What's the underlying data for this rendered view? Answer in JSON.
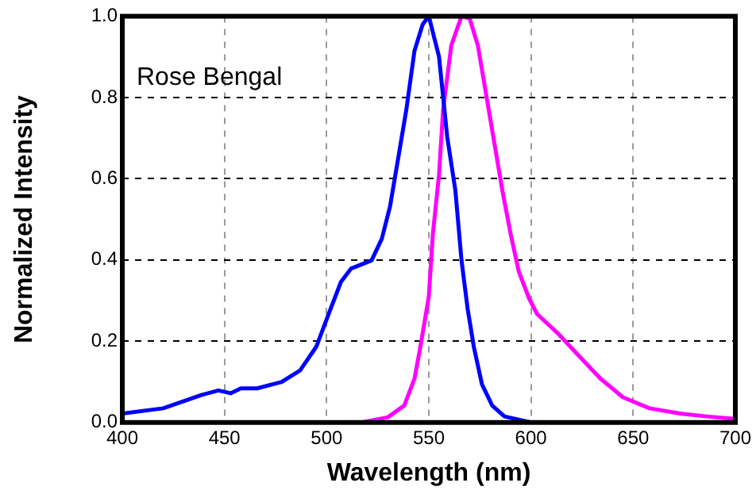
{
  "chart_data": {
    "type": "line",
    "xlabel": "Wavelength (nm)",
    "ylabel": "Normalized Intensity",
    "annotations": [
      "Rose Bengal"
    ],
    "xlim": [
      400,
      700
    ],
    "xticks": [
      400,
      450,
      500,
      550,
      600,
      650,
      700
    ],
    "ylim": [
      0,
      1
    ],
    "yticks": [
      {
        "value": 0,
        "label": "0.0"
      },
      {
        "value": 0.2,
        "label": "0.2"
      },
      {
        "value": 0.4,
        "label": "0.4"
      },
      {
        "value": 0.6,
        "label": "0.6"
      },
      {
        "value": 0.8,
        "label": "0.8"
      },
      {
        "value": 1,
        "label": "1.0"
      }
    ],
    "grid": true,
    "legend": false,
    "marker": "none",
    "line_style": "solid",
    "series": [
      {
        "color": "#0000ff",
        "x": [
          400,
          420,
          439,
          447,
          453,
          458,
          466,
          478,
          487,
          495,
          501,
          507,
          512,
          522,
          527,
          531,
          535,
          539,
          543,
          547,
          550,
          555,
          559,
          563,
          566,
          569,
          572,
          576,
          581,
          587,
          600
        ],
        "values": [
          0.022,
          0.035,
          0.068,
          0.079,
          0.072,
          0.084,
          0.084,
          0.1,
          0.128,
          0.187,
          0.267,
          0.346,
          0.379,
          0.399,
          0.452,
          0.531,
          0.65,
          0.77,
          0.915,
          0.98,
          1.0,
          0.9,
          0.703,
          0.571,
          0.399,
          0.28,
          0.187,
          0.094,
          0.042,
          0.015,
          0
        ]
      },
      {
        "color": "#ff00ff",
        "x": [
          517,
          530,
          538,
          543,
          546,
          550,
          552,
          555,
          557,
          561,
          566,
          570,
          574,
          578,
          582,
          586,
          590,
          594,
          599,
          603,
          613,
          624,
          634,
          645,
          658,
          673,
          686,
          700
        ],
        "values": [
          0,
          0.013,
          0.042,
          0.108,
          0.19,
          0.31,
          0.465,
          0.61,
          0.77,
          0.928,
          1.0,
          0.994,
          0.928,
          0.809,
          0.69,
          0.571,
          0.465,
          0.372,
          0.306,
          0.267,
          0.22,
          0.161,
          0.108,
          0.062,
          0.035,
          0.022,
          0.015,
          0.009
        ]
      }
    ]
  }
}
